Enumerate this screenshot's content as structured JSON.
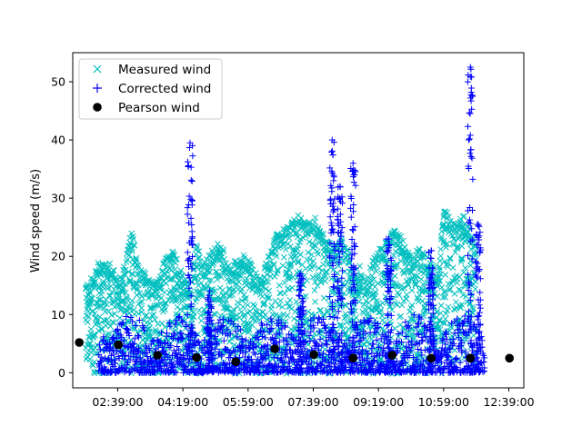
{
  "chart_data": {
    "type": "scatter",
    "title": "",
    "xlabel": "",
    "ylabel": "Wind speed (m/s)",
    "x_tick_labels": [
      "02:39:00",
      "04:19:00",
      "05:59:00",
      "07:39:00",
      "09:19:00",
      "10:59:00",
      "12:39:00"
    ],
    "x_tick_minutes": [
      159,
      259,
      359,
      459,
      559,
      659,
      759
    ],
    "xlim_minutes": [
      90,
      782
    ],
    "ylim": [
      -2.6,
      55
    ],
    "y_ticks": [
      0,
      10,
      20,
      30,
      40,
      50
    ],
    "grid": false,
    "legend_position": "top-left",
    "series": [
      {
        "name": "Measured wind",
        "marker": "x",
        "color": "#00bfbf",
        "envelope": {
          "time_minutes": [
            110,
            120,
            130,
            140,
            150,
            160,
            170,
            180,
            190,
            200,
            210,
            220,
            230,
            240,
            250,
            260,
            270,
            280,
            290,
            300,
            310,
            320,
            330,
            340,
            350,
            360,
            370,
            380,
            390,
            400,
            410,
            420,
            430,
            440,
            450,
            460,
            470,
            480,
            490,
            500,
            510,
            520,
            530,
            540,
            550,
            560,
            570,
            580,
            590,
            600,
            610,
            620,
            630,
            640,
            650,
            660,
            670,
            680,
            690,
            700,
            710
          ],
          "upper": [
            14,
            15,
            18,
            18,
            18,
            14,
            18,
            23,
            18,
            16,
            14,
            15,
            18,
            20,
            18,
            15,
            14,
            22,
            17,
            19,
            21,
            20,
            17,
            18,
            19,
            18,
            16,
            15,
            19,
            22,
            23,
            24,
            25,
            26,
            24,
            26,
            23,
            22,
            20,
            22,
            21,
            16,
            17,
            14,
            18,
            20,
            21,
            24,
            23,
            21,
            18,
            20,
            19,
            18,
            16,
            27,
            25,
            24,
            26,
            23,
            20
          ],
          "lower": [
            -0.2,
            -0.2,
            -0.2,
            -0.2,
            -0.2,
            -0.2,
            -0.2,
            -0.2,
            -0.2,
            -0.2,
            -0.2,
            -0.2,
            -0.2,
            -0.2,
            -0.2,
            -0.2,
            -0.2,
            -0.2,
            -0.2,
            -0.2,
            -0.2,
            -0.2,
            -0.2,
            -0.2,
            -0.2,
            -0.2,
            -0.2,
            -0.2,
            -0.2,
            -0.2,
            -0.2,
            -0.2,
            -0.2,
            -0.2,
            -0.2,
            -0.2,
            -0.2,
            -0.2,
            -0.2,
            -0.2,
            -0.2,
            -0.2,
            -0.2,
            -0.2,
            -0.2,
            -0.2,
            -0.2,
            -0.2,
            -0.2,
            -0.2,
            -0.2,
            -0.2,
            -0.2,
            -0.2,
            -0.2,
            -0.2,
            -0.2,
            -0.2,
            -0.2,
            -0.2,
            -0.2
          ]
        }
      },
      {
        "name": "Corrected wind",
        "marker": "+",
        "color": "#0000ff",
        "typical_range": [
          0,
          10
        ],
        "spikes": [
          {
            "time_minutes": 270,
            "max": 39.5
          },
          {
            "time_minutes": 300,
            "max": 14
          },
          {
            "time_minutes": 440,
            "max": 17
          },
          {
            "time_minutes": 488,
            "max": 40
          },
          {
            "time_minutes": 500,
            "max": 32
          },
          {
            "time_minutes": 520,
            "max": 36
          },
          {
            "time_minutes": 575,
            "max": 23
          },
          {
            "time_minutes": 640,
            "max": 21
          },
          {
            "time_minutes": 700,
            "max": 52.5
          },
          {
            "time_minutes": 712,
            "max": 25.5
          }
        ]
      },
      {
        "name": "Pearson wind",
        "marker": "o",
        "color": "#000000",
        "x_minutes": [
          100,
          160,
          220,
          280,
          340,
          400,
          460,
          520,
          580,
          640,
          700,
          760
        ],
        "y": [
          5.2,
          4.8,
          3.0,
          2.6,
          1.9,
          4.1,
          3.1,
          2.5,
          3.0,
          2.5,
          2.5,
          2.5
        ]
      }
    ]
  }
}
